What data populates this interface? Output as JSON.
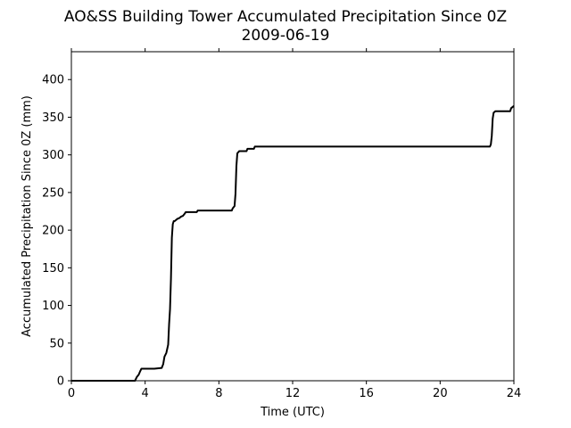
{
  "chart_data": {
    "type": "line",
    "title": "AO&SS Building Tower Accumulated Precipitation Since 0Z",
    "subtitle": "2009-06-19",
    "xlabel": "Time (UTC)",
    "ylabel": "Accumulated Precipitation Since 0Z (mm)",
    "xlim": [
      0,
      24
    ],
    "ylim": [
      0,
      437
    ],
    "xticks": [
      0,
      4,
      8,
      12,
      16,
      20,
      24
    ],
    "yticks": [
      0,
      50,
      100,
      150,
      200,
      250,
      300,
      350,
      400
    ],
    "grid": false,
    "line_color": "#000000",
    "series": [
      {
        "x": [
          0,
          3.45,
          3.55,
          3.65,
          3.72,
          3.8,
          3.9,
          4.5,
          4.9,
          4.98,
          5.05,
          5.15,
          5.25,
          5.3,
          5.35,
          5.4,
          5.45,
          5.5,
          5.55,
          5.6,
          5.65,
          5.75,
          5.85,
          5.95,
          6.05,
          6.15,
          6.2,
          6.25,
          6.8,
          6.85,
          8.7,
          8.75,
          8.85,
          8.9,
          8.95,
          9.0,
          9.1,
          9.2,
          9.5,
          9.55,
          9.9,
          9.95,
          22.7,
          22.75,
          22.8,
          22.85,
          22.9,
          23.0,
          23.8,
          23.85,
          24.0
        ],
        "y": [
          0,
          0,
          5,
          8,
          12,
          16,
          16,
          16,
          17,
          22,
          32,
          37,
          48,
          75,
          95,
          135,
          190,
          208,
          212,
          212,
          213,
          215,
          216,
          218,
          219,
          222,
          224,
          224,
          224,
          226,
          226,
          229,
          232,
          248,
          285,
          302,
          305,
          305,
          305,
          308,
          308,
          311,
          311,
          314,
          325,
          348,
          356,
          358,
          358,
          362,
          365
        ]
      }
    ]
  }
}
